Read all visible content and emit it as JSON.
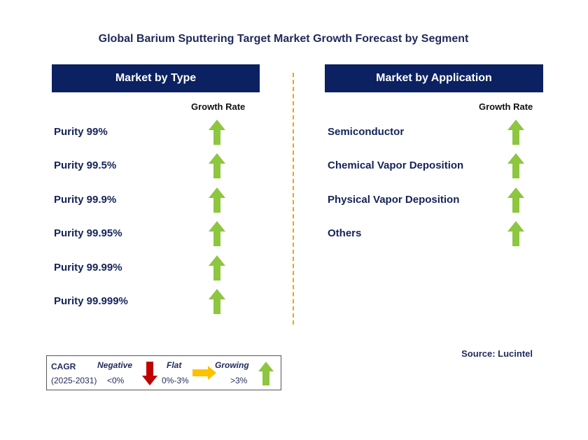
{
  "title": "Global Barium Sputtering Target Market Growth Forecast by Segment",
  "colors": {
    "header_bg": "#0b2161",
    "growing": "#8dc63f",
    "negative": "#c00000",
    "flat": "#ffc000",
    "divider": "#f0a500"
  },
  "left_panel": {
    "header": "Market by Type",
    "growth_label": "Growth Rate",
    "items": [
      {
        "label": "Purity 99%",
        "trend": "growing"
      },
      {
        "label": "Purity 99.5%",
        "trend": "growing"
      },
      {
        "label": "Purity 99.9%",
        "trend": "growing"
      },
      {
        "label": "Purity 99.95%",
        "trend": "growing"
      },
      {
        "label": "Purity 99.99%",
        "trend": "growing"
      },
      {
        "label": "Purity 99.999%",
        "trend": "growing"
      }
    ]
  },
  "right_panel": {
    "header": "Market by Application",
    "growth_label": "Growth Rate",
    "items": [
      {
        "label": "Semiconductor",
        "trend": "growing"
      },
      {
        "label": "Chemical Vapor Deposition",
        "trend": "growing"
      },
      {
        "label": "Physical Vapor Deposition",
        "trend": "growing"
      },
      {
        "label": "Others",
        "trend": "growing"
      }
    ]
  },
  "source": "Source: Lucintel",
  "legend": {
    "cagr_label": "CAGR",
    "period": "(2025-2031)",
    "negative_label": "Negative",
    "negative_range": "<0%",
    "flat_label": "Flat",
    "flat_range": "0%-3%",
    "growing_label": "Growing",
    "growing_range": ">3%"
  },
  "chart_data": {
    "type": "table",
    "title": "Global Barium Sputtering Target Market Growth Forecast by Segment",
    "segments": [
      {
        "name": "Market by Type",
        "rows": [
          {
            "label": "Purity 99%",
            "growth": "growing"
          },
          {
            "label": "Purity 99.5%",
            "growth": "growing"
          },
          {
            "label": "Purity 99.9%",
            "growth": "growing"
          },
          {
            "label": "Purity 99.95%",
            "growth": "growing"
          },
          {
            "label": "Purity 99.99%",
            "growth": "growing"
          },
          {
            "label": "Purity 99.999%",
            "growth": "growing"
          }
        ]
      },
      {
        "name": "Market by Application",
        "rows": [
          {
            "label": "Semiconductor",
            "growth": "growing"
          },
          {
            "label": "Chemical Vapor Deposition",
            "growth": "growing"
          },
          {
            "label": "Physical Vapor Deposition",
            "growth": "growing"
          },
          {
            "label": "Others",
            "growth": "growing"
          }
        ]
      }
    ]
  }
}
